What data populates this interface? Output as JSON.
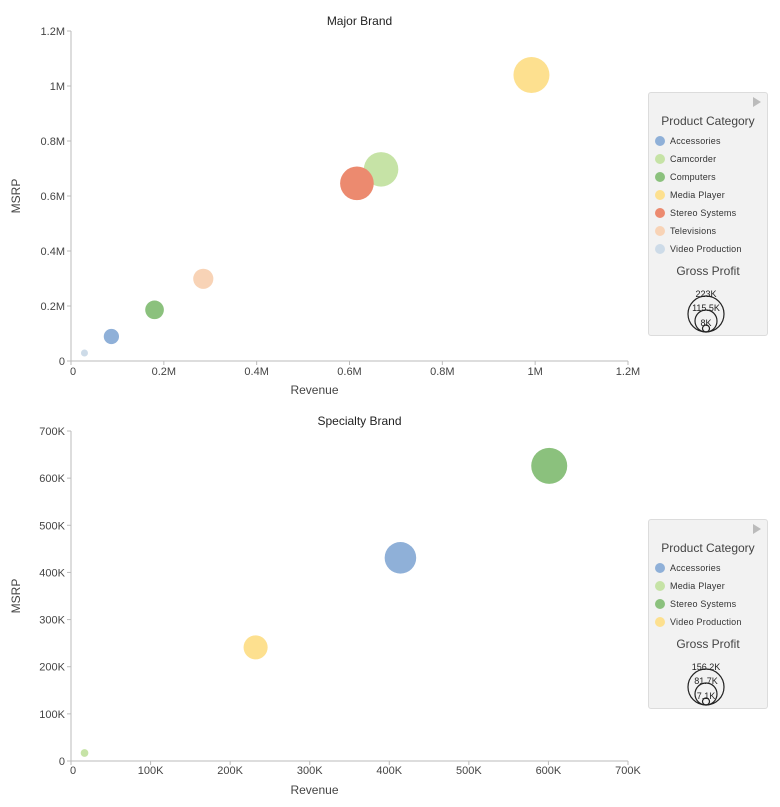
{
  "chart_data": [
    {
      "type": "scatter",
      "title": "Major Brand",
      "xlabel": "Revenue",
      "ylabel": "MSRP",
      "xlim": [
        0,
        1200000
      ],
      "ylim": [
        0,
        1200000
      ],
      "x_ticks": [
        "0",
        "0.2M",
        "0.4M",
        "0.6M",
        "0.8M",
        "1M",
        "1.2M"
      ],
      "y_ticks": [
        "0",
        "0.2M",
        "0.4M",
        "0.6M",
        "0.8M",
        "1M",
        "1.2M"
      ],
      "grid": false,
      "legend": {
        "title": "Product Category",
        "placement": "right",
        "items": [
          {
            "label": "Accessories",
            "color": "#8fb0d8"
          },
          {
            "label": "Camcorder",
            "color": "#c6e3a6"
          },
          {
            "label": "Computers",
            "color": "#8bc17d"
          },
          {
            "label": "Media Player",
            "color": "#fde08f"
          },
          {
            "label": "Stereo Systems",
            "color": "#ec8a6f"
          },
          {
            "label": "Televisions",
            "color": "#f8d3b6"
          },
          {
            "label": "Video Production",
            "color": "#cddbe8"
          }
        ]
      },
      "size_legend": {
        "title": "Gross Profit",
        "values": [
          "223K",
          "115.5K",
          "8K"
        ]
      },
      "points": [
        {
          "category": "Accessories",
          "x": 87000,
          "y": 89000,
          "size": 40000
        },
        {
          "category": "Camcorder",
          "x": 668000,
          "y": 697000,
          "size": 205000
        },
        {
          "category": "Computers",
          "x": 180000,
          "y": 186000,
          "size": 60000
        },
        {
          "category": "Media Player",
          "x": 992000,
          "y": 1040000,
          "size": 223000
        },
        {
          "category": "Stereo Systems",
          "x": 616000,
          "y": 646000,
          "size": 195000
        },
        {
          "category": "Televisions",
          "x": 285000,
          "y": 299000,
          "size": 70000
        },
        {
          "category": "Video Production",
          "x": 29000,
          "y": 29000,
          "size": 8000
        }
      ]
    },
    {
      "type": "scatter",
      "title": "Specialty Brand",
      "xlabel": "Revenue",
      "ylabel": "MSRP",
      "xlim": [
        0,
        700000
      ],
      "ylim": [
        0,
        700000
      ],
      "x_ticks": [
        "0",
        "100K",
        "200K",
        "300K",
        "400K",
        "500K",
        "600K",
        "700K"
      ],
      "y_ticks": [
        "0",
        "100K",
        "200K",
        "300K",
        "400K",
        "500K",
        "600K",
        "700K"
      ],
      "grid": false,
      "legend": {
        "title": "Product Category",
        "placement": "right",
        "items": [
          {
            "label": "Accessories",
            "color": "#8fb0d8"
          },
          {
            "label": "Media Player",
            "color": "#c6e3a6"
          },
          {
            "label": "Stereo Systems",
            "color": "#8bc17d"
          },
          {
            "label": "Video Production",
            "color": "#fde08f"
          }
        ]
      },
      "size_legend": {
        "title": "Gross Profit",
        "values": [
          "156.2K",
          "81.7K",
          "7.1K"
        ]
      },
      "points": [
        {
          "category": "Accessories",
          "x": 414000,
          "y": 431000,
          "size": 120000
        },
        {
          "category": "Media Player",
          "x": 17000,
          "y": 17000,
          "size": 7100
        },
        {
          "category": "Stereo Systems",
          "x": 601000,
          "y": 626000,
          "size": 156200
        },
        {
          "category": "Video Production",
          "x": 232000,
          "y": 241000,
          "size": 70000
        }
      ]
    }
  ]
}
